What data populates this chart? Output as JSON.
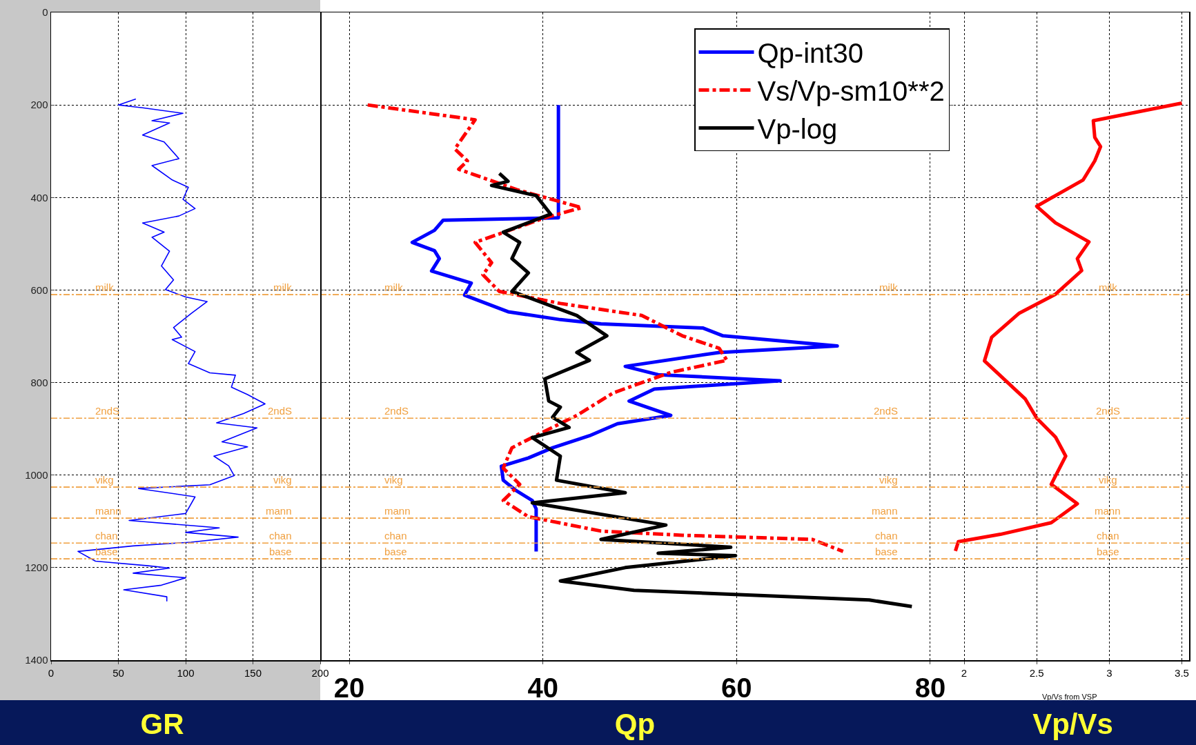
{
  "chart_data": [
    {
      "type": "line",
      "orientation": "horizontal",
      "xlabel": "GR",
      "xlim": [
        0,
        200
      ],
      "xticks": [
        0,
        50,
        100,
        150,
        200
      ],
      "ylim": [
        1400,
        0
      ],
      "yticks": [
        0,
        200,
        400,
        600,
        800,
        1000,
        1200,
        1400
      ],
      "grid": true,
      "series": [
        {
          "color": "#0000ff",
          "x": [
            187,
            200,
            206,
            218,
            234,
            239,
            265,
            280,
            316,
            331,
            362,
            378,
            404,
            424,
            440,
            455,
            475,
            486,
            516,
            548,
            578,
            599,
            615,
            625,
            651,
            681,
            702,
            707,
            733,
            759,
            779,
            784,
            810,
            826,
            846,
            867,
            887,
            898,
            928,
            939,
            959,
            980,
            1001,
            1021,
            1029,
            1047,
            1083,
            1098,
            1114,
            1124,
            1134,
            1145,
            1153,
            1165,
            1186,
            1196,
            1201,
            1212,
            1222,
            1238,
            1248,
            1263,
            1273
          ],
          "values": [
            63,
            50,
            68,
            98,
            75,
            88,
            68,
            84,
            95,
            75,
            90,
            102,
            98,
            107,
            95,
            68,
            84,
            75,
            88,
            82,
            91,
            85,
            100,
            116,
            104,
            91,
            97,
            90,
            107,
            102,
            118,
            137,
            134,
            146,
            159,
            143,
            123,
            153,
            127,
            146,
            121,
            132,
            136,
            118,
            65,
            107,
            100,
            58,
            125,
            100,
            139,
            104,
            61,
            20,
            33,
            72,
            88,
            61,
            100,
            82,
            54,
            86,
            86
          ]
        }
      ],
      "ref_lines": [
        {
          "axis": "y",
          "value": 610,
          "label": "milk",
          "color": "#f0a040",
          "line_style": "dashed"
        },
        {
          "axis": "y",
          "value": 877,
          "label": "2ndS",
          "color": "#f0a040",
          "line_style": "dashed"
        },
        {
          "axis": "y",
          "value": 1026,
          "label": "vikg",
          "color": "#f0a040",
          "line_style": "dashed"
        },
        {
          "axis": "y",
          "value": 1093,
          "label": "mann",
          "color": "#f0a040",
          "line_style": "dashed"
        },
        {
          "axis": "y",
          "value": 1147,
          "label": "chan",
          "color": "#f0a040",
          "line_style": "dashed"
        },
        {
          "axis": "y",
          "value": 1181,
          "label": "base",
          "color": "#f0a040",
          "line_style": "dashed"
        }
      ]
    },
    {
      "type": "line",
      "orientation": "horizontal",
      "xlabel": "Qp",
      "xlim": [
        17,
        82
      ],
      "xticks": [
        20,
        40,
        60,
        80
      ],
      "ylim": [
        1400,
        0
      ],
      "yticks": [
        0,
        200,
        400,
        600,
        800,
        1000,
        1200,
        1400
      ],
      "grid": true,
      "tick_labels": "x",
      "legend": "top right",
      "series": [
        {
          "name": "Qp-int30",
          "color": "#0000ff",
          "line_style": "solid",
          "x": [
            200,
            444,
            449,
            471,
            497,
            515,
            532,
            559,
            585,
            611,
            647,
            664,
            673,
            682,
            699,
            721,
            735,
            765,
            783,
            796,
            814,
            840,
            871,
            889,
            915,
            941,
            963,
            981,
            1011,
            1033,
            1055,
            1073,
            1165
          ],
          "values": [
            41.6,
            41.6,
            29.7,
            28.8,
            26.5,
            28.8,
            29.3,
            28.5,
            32.6,
            31.9,
            36.4,
            41.8,
            46,
            56.5,
            58.6,
            70.4,
            58.2,
            48.5,
            51.9,
            64.5,
            51.5,
            48.9,
            53.2,
            47.7,
            44.8,
            41,
            38.5,
            35.7,
            35.9,
            37.2,
            38.9,
            39.3,
            39.3
          ]
        },
        {
          "name": "Vs/Vp-sm10**2",
          "color": "#ff0000",
          "line_style": "dashed",
          "x": [
            200,
            232,
            295,
            321,
            339,
            383,
            422,
            444,
            497,
            541,
            567,
            603,
            629,
            655,
            699,
            726,
            752,
            778,
            822,
            871,
            906,
            941,
            985,
            1020,
            1055,
            1090,
            1121,
            1130,
            1139,
            1165
          ],
          "values": [
            21.9,
            33,
            30.9,
            32.2,
            31.3,
            37.3,
            44,
            40.2,
            33,
            34.7,
            33.8,
            35.5,
            41.8,
            50.2,
            54.4,
            58.2,
            59,
            53.2,
            47.3,
            43.5,
            40.1,
            36.8,
            35.9,
            37.6,
            35.9,
            38.5,
            46,
            54.4,
            67.8,
            71
          ]
        },
        {
          "name": "Vp-log",
          "color": "#000000",
          "line_style": "solid",
          "x": [
            348,
            365,
            374,
            396,
            436,
            475,
            497,
            532,
            563,
            603,
            655,
            699,
            735,
            752,
            792,
            840,
            853,
            875,
            897,
            919,
            959,
            1011,
            1038,
            1060,
            1108,
            1139,
            1156,
            1169,
            1174,
            1200,
            1229,
            1249,
            1270,
            1284
          ],
          "values": [
            35.5,
            36.4,
            34.7,
            39.3,
            40.8,
            35.9,
            37.6,
            36.8,
            38.5,
            36.8,
            43.5,
            46.6,
            43.5,
            44.8,
            40.2,
            40.6,
            41.8,
            41,
            42.7,
            38.9,
            41.8,
            41.4,
            48.5,
            38.9,
            52.7,
            46,
            59.4,
            51.9,
            59.9,
            48.5,
            41.8,
            49.4,
            73.7,
            78.1
          ]
        }
      ],
      "ref_lines": [
        {
          "axis": "y",
          "value": 610,
          "label": "milk",
          "color": "#f0a040",
          "line_style": "dashed"
        },
        {
          "axis": "y",
          "value": 877,
          "label": "2ndS",
          "color": "#f0a040",
          "line_style": "dashed"
        },
        {
          "axis": "y",
          "value": 1026,
          "label": "vikg",
          "color": "#f0a040",
          "line_style": "dashed"
        },
        {
          "axis": "y",
          "value": 1093,
          "label": "mann",
          "color": "#f0a040",
          "line_style": "dashed"
        },
        {
          "axis": "y",
          "value": 1147,
          "label": "chan",
          "color": "#f0a040",
          "line_style": "dashed"
        },
        {
          "axis": "y",
          "value": 1181,
          "label": "base",
          "color": "#f0a040",
          "line_style": "dashed"
        }
      ]
    },
    {
      "type": "line",
      "orientation": "horizontal",
      "xlabel": "Vp/Vs",
      "annotations": [
        "Vp/Vs from VSP"
      ],
      "xlim": [
        1.9,
        3.55
      ],
      "xticks": [
        2,
        2.5,
        3,
        3.5
      ],
      "ylim": [
        1400,
        0
      ],
      "yticks": [
        0,
        200,
        400,
        600,
        800,
        1000,
        1200,
        1400
      ],
      "grid": true,
      "tick_labels": "x",
      "series": [
        {
          "color": "#ff0000",
          "x": [
            196,
            234,
            270,
            290,
            321,
            362,
            419,
            455,
            496,
            532,
            558,
            609,
            650,
            702,
            753,
            794,
            835,
            877,
            918,
            959,
            1020,
            1062,
            1103,
            1128,
            1144,
            1164
          ],
          "values": [
            3.5,
            2.89,
            2.9,
            2.94,
            2.9,
            2.82,
            2.5,
            2.63,
            2.86,
            2.78,
            2.81,
            2.63,
            2.38,
            2.19,
            2.14,
            2.28,
            2.42,
            2.5,
            2.63,
            2.7,
            2.6,
            2.78,
            2.6,
            2.25,
            1.96,
            1.94
          ]
        }
      ],
      "ref_lines": [
        {
          "axis": "y",
          "value": 610,
          "label": "milk",
          "color": "#f0a040",
          "line_style": "dashed"
        },
        {
          "axis": "y",
          "value": 877,
          "label": "2ndS",
          "color": "#f0a040",
          "line_style": "dashed"
        },
        {
          "axis": "y",
          "value": 1026,
          "label": "vikg",
          "color": "#f0a040",
          "line_style": "dashed"
        },
        {
          "axis": "y",
          "value": 1093,
          "label": "mann",
          "color": "#f0a040",
          "line_style": "dashed"
        },
        {
          "axis": "y",
          "value": 1147,
          "label": "chan",
          "color": "#f0a040",
          "line_style": "dashed"
        },
        {
          "axis": "y",
          "value": 1181,
          "label": "base",
          "color": "#f0a040",
          "line_style": "dashed"
        }
      ]
    }
  ]
}
